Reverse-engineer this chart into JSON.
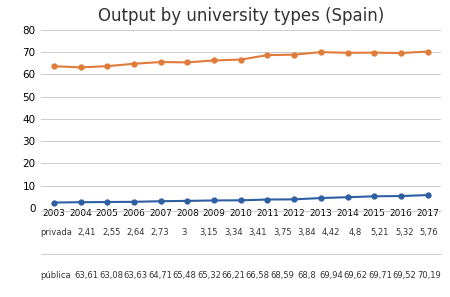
{
  "title": "Output by university types (Spain)",
  "years": [
    2003,
    2004,
    2005,
    2006,
    2007,
    2008,
    2009,
    2010,
    2011,
    2012,
    2013,
    2014,
    2015,
    2016,
    2017
  ],
  "privada": [
    2.41,
    2.55,
    2.64,
    2.73,
    3,
    3.15,
    3.34,
    3.41,
    3.75,
    3.84,
    4.42,
    4.8,
    5.21,
    5.32,
    5.76
  ],
  "publica": [
    63.61,
    63.08,
    63.63,
    64.71,
    65.48,
    65.32,
    66.21,
    66.58,
    68.59,
    68.8,
    69.94,
    69.62,
    69.71,
    69.52,
    70.19
  ],
  "privada_color": "#2e5fa3",
  "publica_color": "#e07b39",
  "privada_label": "privada",
  "publica_label": "pública",
  "table_privada": [
    "2,41",
    "2,55",
    "2,64",
    "2,73",
    "3",
    "3,15",
    "3,34",
    "3,41",
    "3,75",
    "3,84",
    "4,42",
    "4,8",
    "5,21",
    "5,32",
    "5,76"
  ],
  "table_publica": [
    "63,61",
    "63,08",
    "63,63",
    "64,71",
    "65,48",
    "65,32",
    "66,21",
    "66,58",
    "68,59",
    "68,8",
    "69,94",
    "69,62",
    "69,71",
    "69,52",
    "70,19"
  ],
  "ylim": [
    0,
    80
  ],
  "yticks": [
    0,
    10,
    20,
    30,
    40,
    50,
    60,
    70,
    80
  ],
  "background_color": "#ffffff",
  "title_fontsize": 12,
  "marker": "o",
  "marker_size": 3.5,
  "line_width": 1.5,
  "table_font_size": 6.0
}
